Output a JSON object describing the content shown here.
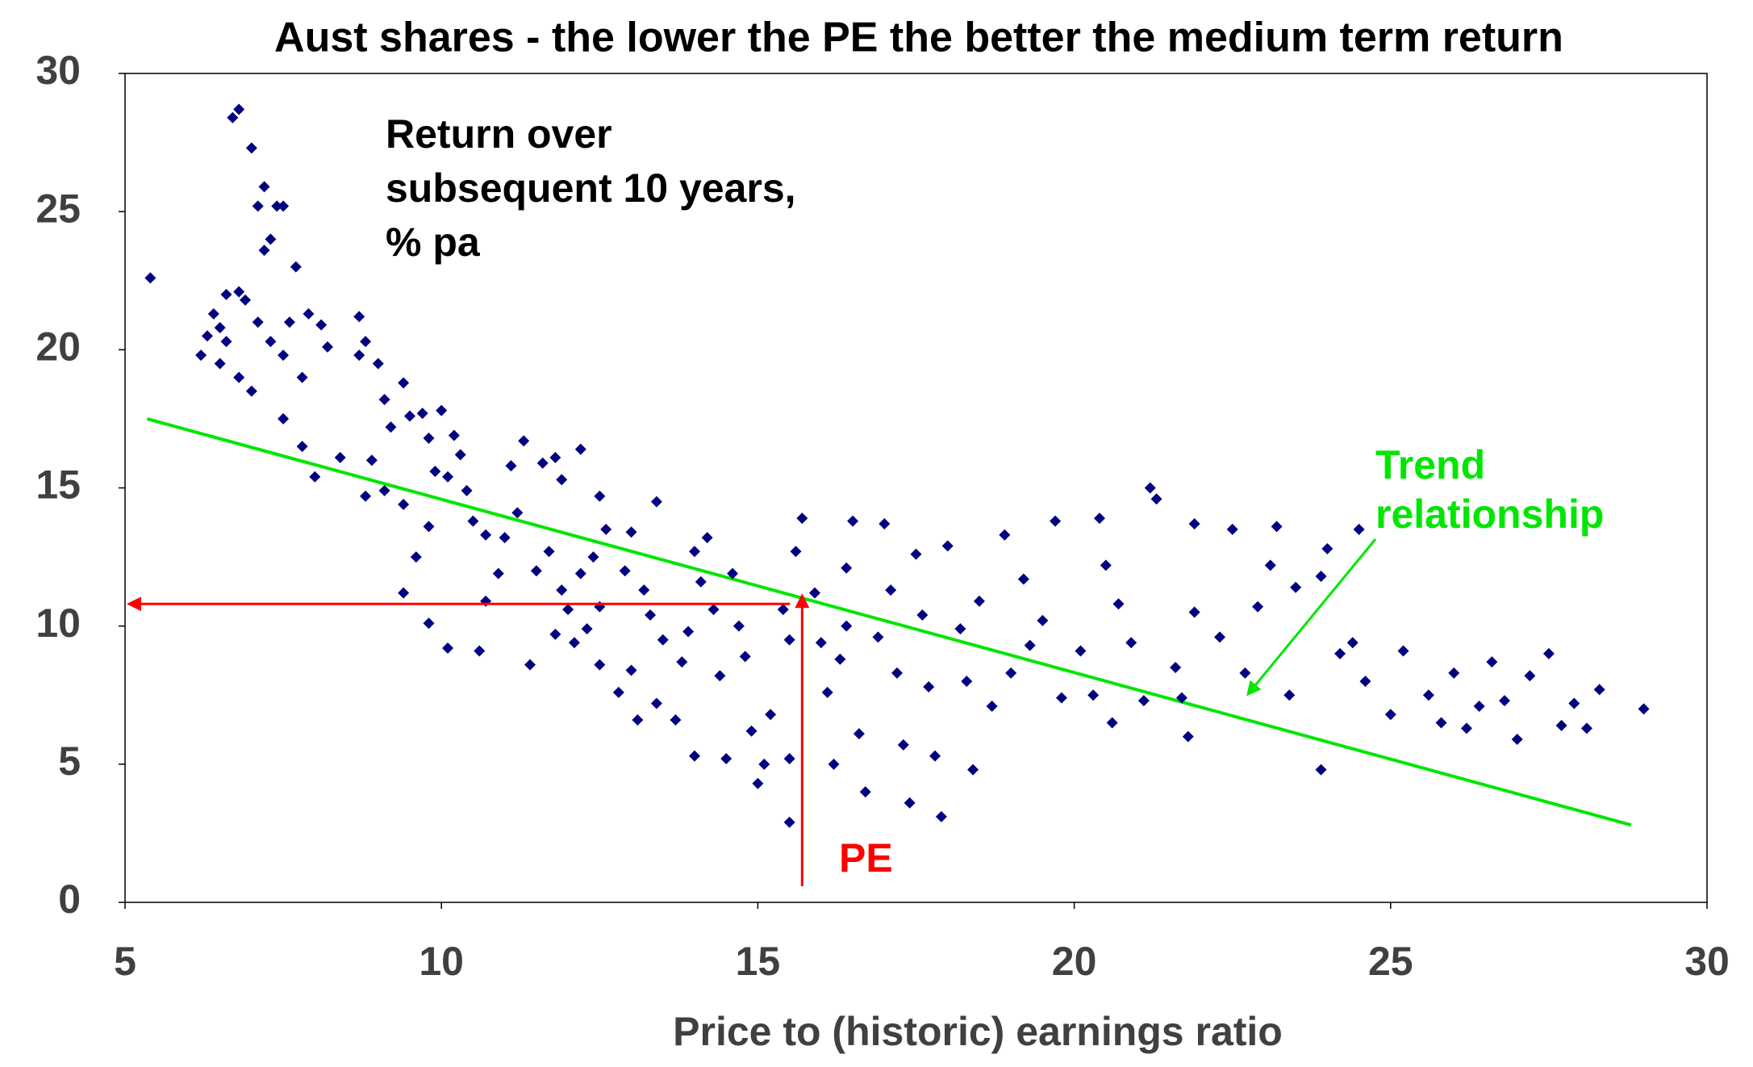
{
  "chart_data": {
    "type": "scatter",
    "title": "Aust shares - the lower the PE the better the medium term return",
    "xlabel": "Price to (historic) earnings ratio",
    "xlim": [
      5,
      30
    ],
    "xticks": [
      5,
      10,
      15,
      20,
      25,
      30
    ],
    "ylim": [
      0,
      30
    ],
    "yticks": [
      0,
      5,
      10,
      15,
      20,
      25,
      30
    ],
    "grid": false,
    "color": "#000080",
    "x": [
      5.4,
      6.8,
      6.7,
      7.0,
      7.2,
      7.1,
      7.4,
      7.5,
      7.3,
      7.2,
      7.7,
      6.6,
      6.8,
      6.9,
      6.4,
      6.5,
      6.3,
      6.6,
      6.2,
      6.5,
      6.8,
      7.0,
      7.1,
      7.3,
      7.5,
      7.6,
      7.8,
      7.9,
      8.1,
      8.2,
      7.5,
      7.8,
      8.0,
      8.4,
      8.7,
      8.8,
      8.7,
      9.0,
      9.1,
      9.2,
      8.9,
      8.8,
      9.1,
      9.4,
      9.5,
      9.4,
      9.7,
      9.8,
      9.9,
      10.0,
      10.2,
      10.3,
      10.1,
      10.4,
      10.5,
      10.7,
      9.8,
      9.6,
      9.4,
      9.8,
      10.1,
      10.6,
      10.7,
      10.9,
      11.0,
      11.2,
      11.1,
      11.3,
      11.6,
      11.8,
      11.9,
      12.2,
      11.5,
      11.7,
      11.9,
      12.0,
      12.2,
      12.4,
      11.4,
      11.8,
      12.1,
      12.3,
      12.5,
      12.5,
      12.8,
      12.6,
      12.5,
      12.9,
      13.0,
      13.2,
      13.4,
      13.3,
      13.5,
      13.0,
      13.1,
      13.4,
      13.7,
      13.8,
      13.9,
      14.0,
      14.2,
      14.1,
      14.3,
      14.4,
      14.0,
      14.5,
      14.6,
      14.7,
      14.8,
      14.9,
      15.0,
      15.1,
      15.2,
      15.4,
      15.5,
      15.6,
      15.7,
      15.5,
      15.5,
      15.9,
      16.0,
      16.1,
      16.2,
      16.3,
      16.4,
      16.5,
      16.4,
      16.6,
      16.7,
      16.9,
      17.0,
      17.1,
      17.2,
      17.3,
      17.4,
      17.5,
      17.6,
      17.7,
      17.8,
      17.9,
      18.0,
      18.2,
      18.3,
      18.4,
      18.5,
      18.7,
      18.9,
      19.0,
      19.2,
      19.3,
      19.5,
      19.7,
      19.8,
      20.1,
      20.3,
      20.4,
      20.5,
      20.6,
      20.7,
      20.9,
      21.2,
      21.3,
      21.1,
      21.6,
      21.7,
      21.8,
      21.9,
      21.9,
      22.3,
      22.5,
      22.7,
      22.9,
      23.1,
      23.2,
      23.4,
      23.5,
      23.9,
      24.0,
      23.9,
      24.2,
      24.4,
      24.5,
      24.6,
      25.0,
      25.2,
      25.6,
      25.8,
      26.0,
      26.2,
      26.4,
      26.6,
      26.8,
      27.0,
      27.2,
      27.5,
      27.7,
      27.9,
      28.1,
      28.3,
      29.0
    ],
    "values": [
      22.6,
      28.7,
      28.4,
      27.3,
      25.9,
      25.2,
      25.2,
      25.2,
      24.0,
      23.6,
      23.0,
      22.0,
      22.1,
      21.8,
      21.3,
      20.8,
      20.5,
      20.3,
      19.8,
      19.5,
      19.0,
      18.5,
      21.0,
      20.3,
      19.8,
      21.0,
      19.0,
      21.3,
      20.9,
      20.1,
      17.5,
      16.5,
      15.4,
      16.1,
      21.2,
      20.3,
      19.8,
      19.5,
      18.2,
      17.2,
      16.0,
      14.7,
      14.9,
      14.4,
      17.6,
      18.8,
      17.7,
      16.8,
      15.6,
      17.8,
      16.9,
      16.2,
      15.4,
      14.9,
      13.8,
      13.3,
      13.6,
      12.5,
      11.2,
      10.1,
      9.2,
      9.1,
      10.9,
      11.9,
      13.2,
      14.1,
      15.8,
      16.7,
      15.9,
      16.1,
      15.3,
      16.4,
      12.0,
      12.7,
      11.3,
      10.6,
      11.9,
      12.5,
      8.6,
      9.7,
      9.4,
      9.9,
      10.7,
      8.6,
      7.6,
      13.5,
      14.7,
      12.0,
      13.4,
      11.3,
      14.5,
      10.4,
      9.5,
      8.4,
      6.6,
      7.2,
      6.6,
      8.7,
      9.8,
      12.7,
      13.2,
      11.6,
      10.6,
      8.2,
      5.3,
      5.2,
      11.9,
      10.0,
      8.9,
      6.2,
      4.3,
      5.0,
      6.8,
      10.6,
      9.5,
      12.7,
      13.9,
      5.2,
      2.9,
      11.2,
      9.4,
      7.6,
      5.0,
      8.8,
      12.1,
      13.8,
      10.0,
      6.1,
      4.0,
      9.6,
      13.7,
      11.3,
      8.3,
      5.7,
      3.6,
      12.6,
      10.4,
      7.8,
      5.3,
      3.1,
      12.9,
      9.9,
      8.0,
      4.8,
      10.9,
      7.1,
      13.3,
      8.3,
      11.7,
      9.3,
      10.2,
      13.8,
      7.4,
      9.1,
      7.5,
      13.9,
      12.2,
      6.5,
      10.8,
      9.4,
      15.0,
      14.6,
      7.3,
      8.5,
      7.4,
      6.0,
      10.5,
      13.7,
      9.6,
      13.5,
      8.3,
      10.7,
      12.2,
      13.6,
      7.5,
      11.4,
      11.8,
      12.8,
      4.8,
      9.0,
      9.4,
      13.5,
      8.0,
      6.8,
      9.1,
      7.5,
      6.5,
      8.3,
      6.3,
      7.1,
      8.7,
      7.3,
      5.9,
      8.2,
      9.0,
      6.4,
      7.2,
      6.3,
      7.7,
      7.0
    ],
    "trend": {
      "x": [
        5.35,
        28.8
      ],
      "values": [
        17.5,
        2.8
      ],
      "color": "#00e600"
    },
    "pe_example": {
      "x": 15.7,
      "y": 10.8,
      "label": "PE",
      "color": "#ff0000"
    },
    "annotation": [
      "Return over",
      "subsequent 10 years,",
      "% pa"
    ],
    "trend_label": [
      "Trend",
      "relationship"
    ]
  }
}
